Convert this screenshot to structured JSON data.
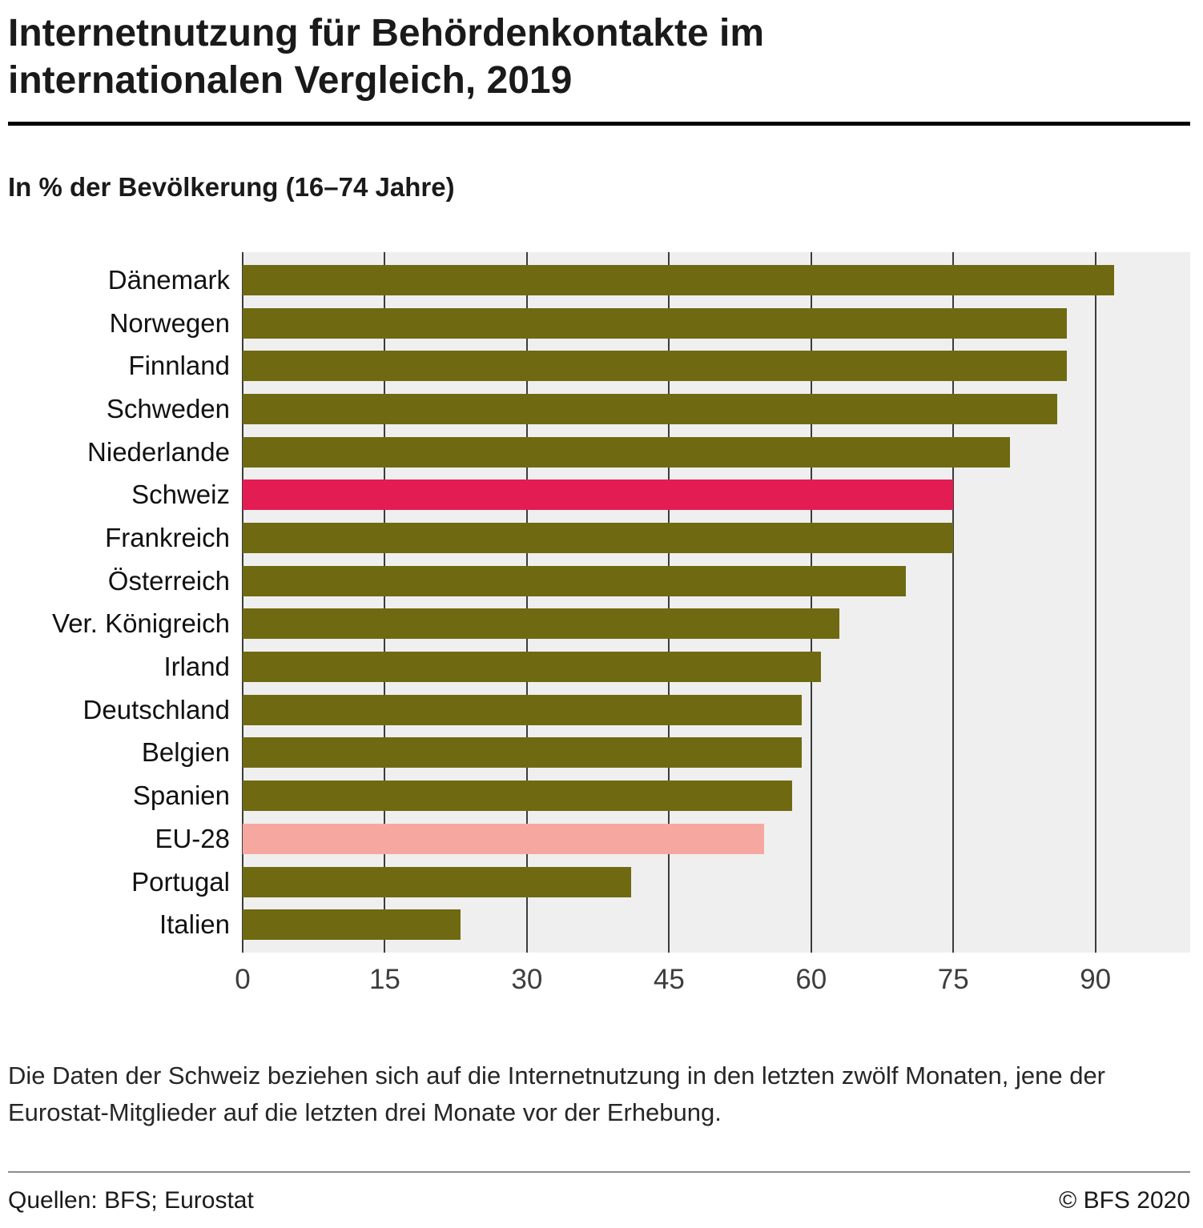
{
  "header": {
    "title": "Internetnutzung für Behördenkontakte im internationalen Vergleich, 2019",
    "subtitle": "In % der Bevölkerung (16–74 Jahre)"
  },
  "chart_data": {
    "type": "bar",
    "orientation": "horizontal",
    "title": "Internetnutzung für Behördenkontakte im internationalen Vergleich, 2019",
    "subtitle": "In % der Bevölkerung (16–74 Jahre)",
    "categories": [
      "Dänemark",
      "Norwegen",
      "Finnland",
      "Schweden",
      "Niederlande",
      "Schweiz",
      "Frankreich",
      "Österreich",
      "Ver. Königreich",
      "Irland",
      "Deutschland",
      "Belgien",
      "Spanien",
      "EU-28",
      "Portugal",
      "Italien"
    ],
    "values": [
      92,
      87,
      87,
      86,
      81,
      75,
      75,
      70,
      63,
      61,
      59,
      59,
      58,
      55,
      41,
      23
    ],
    "xlim": [
      0,
      100
    ],
    "xticks": [
      0,
      15,
      30,
      45,
      60,
      75,
      90
    ],
    "grid": true,
    "legend": "none",
    "highlight_category": "Schweiz",
    "secondary_category": "EU-28",
    "colors": {
      "default": "#6f6a12",
      "highlight": "#e41c54",
      "secondary": "#f6a8a0",
      "plot_background": "#efefef",
      "gridline": "#3c3c3c"
    }
  },
  "footnote": {
    "text": "Die Daten der Schweiz beziehen sich auf die Internetnutzung in den letzten zwölf Monaten, jene der Eurostat-Mitglieder auf die letzten drei Monate vor der Erhebung."
  },
  "footer": {
    "sources": "Quellen: BFS; Eurostat",
    "copyright": "© BFS 2020"
  }
}
